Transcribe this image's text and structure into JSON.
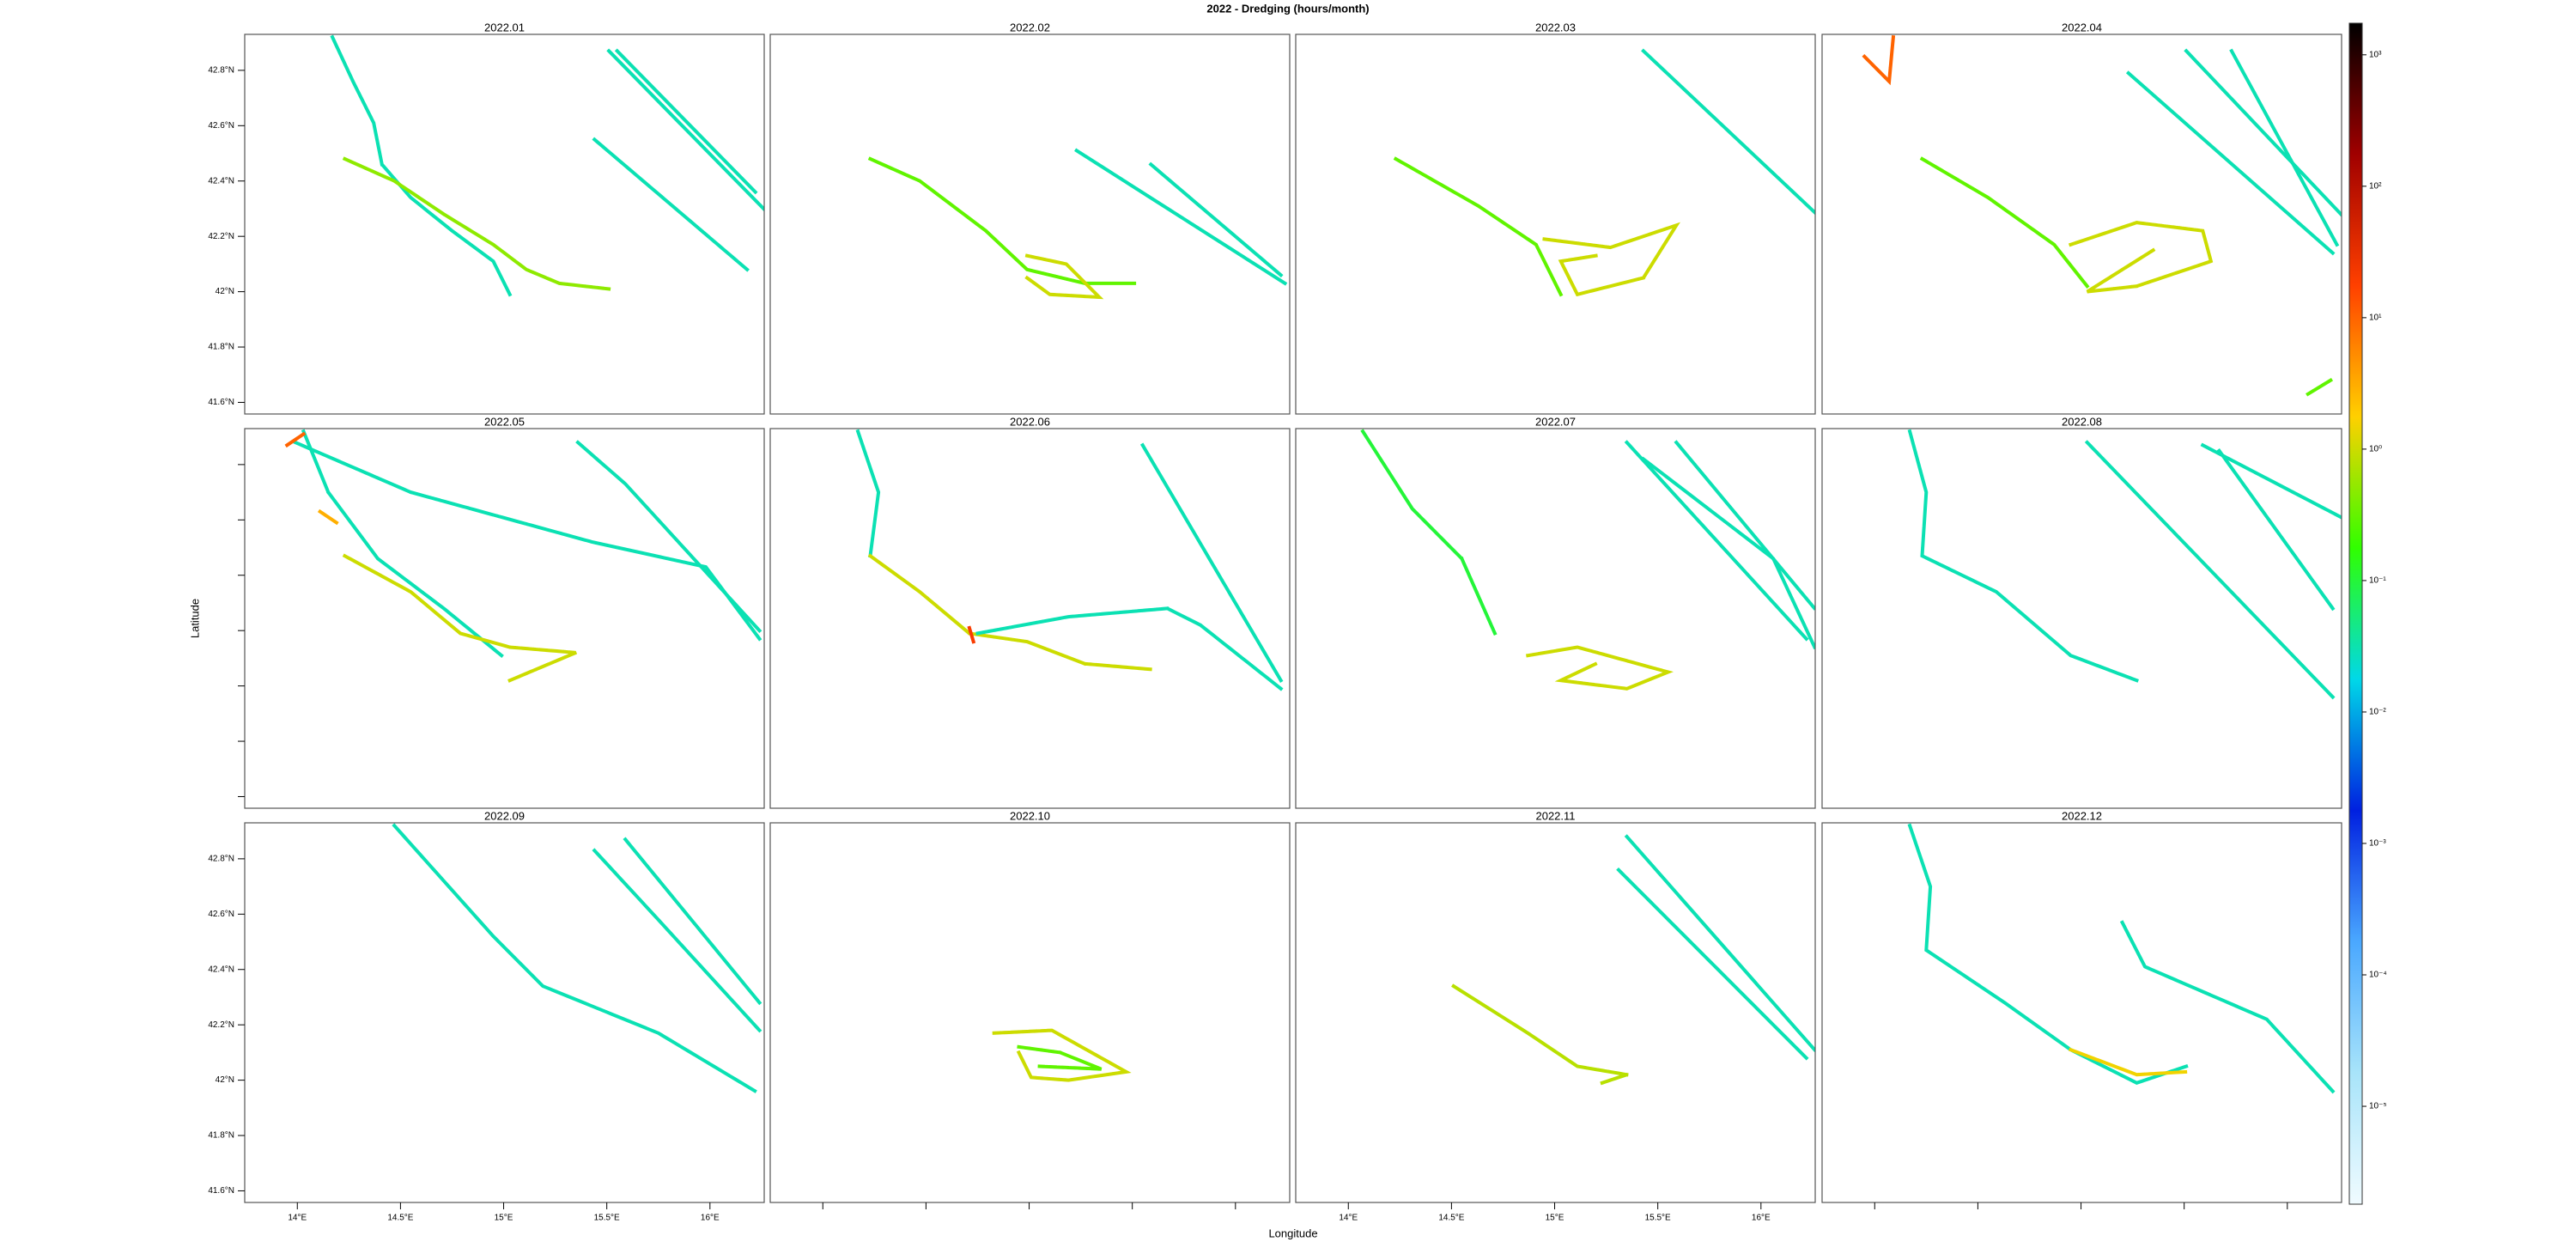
{
  "chart_data": {
    "type": "track_map",
    "title": "2022 - Dredging (hours/month)",
    "xlabel": "Longitude",
    "ylabel": "Latitude",
    "xlim": [
      13.745,
      16.263
    ],
    "ylim": [
      41.558,
      42.93
    ],
    "xticks": [
      {
        "value": 14,
        "label": "14°E"
      },
      {
        "value": 14.5,
        "label": "14.5°E"
      },
      {
        "value": 15,
        "label": "15°E"
      },
      {
        "value": 15.5,
        "label": "15.5°E"
      },
      {
        "value": 16,
        "label": "16°E"
      }
    ],
    "yticks": [
      {
        "value": 41.6,
        "label": "41.6°N"
      },
      {
        "value": 41.8,
        "label": "41.8°N"
      },
      {
        "value": 42,
        "label": "42°N"
      },
      {
        "value": 42.2,
        "label": "42.2°N"
      },
      {
        "value": 42.4,
        "label": "42.4°N"
      },
      {
        "value": 42.6,
        "label": "42.6°N"
      },
      {
        "value": 42.8,
        "label": "42.8°N"
      }
    ],
    "colorbar": {
      "log": true,
      "clim": [
        1.8e-06,
        1740
      ],
      "colors": [
        "#f0fbff",
        "#a8e4fa",
        "#4aa8ff",
        "#0020e0",
        "#00d8e8",
        "#30ff00",
        "#ffd000",
        "#ff4000",
        "#a00000",
        "#000000"
      ],
      "ticks": [
        {
          "value": 1e-05,
          "label": "10⁻⁵"
        },
        {
          "value": 0.0001,
          "label": "10⁻⁴"
        },
        {
          "value": 0.001,
          "label": "10⁻³"
        },
        {
          "value": 0.01,
          "label": "10⁻²"
        },
        {
          "value": 0.1,
          "label": "10⁻¹"
        },
        {
          "value": 1,
          "label": "10⁰"
        },
        {
          "value": 10,
          "label": "10¹"
        },
        {
          "value": 100,
          "label": "10²"
        },
        {
          "value": 1000,
          "label": "10³"
        }
      ]
    },
    "panels": [
      {
        "title": "2022.01",
        "xaxis": "none",
        "yaxis": "labels",
        "tracks": [
          {
            "lon": [
              14.17,
              14.27,
              14.37,
              14.41,
              14.55,
              14.75,
              14.95,
              15.03
            ],
            "lat": [
              42.92,
              42.76,
              42.61,
              42.46,
              42.34,
              42.22,
              42.11,
              41.99
            ],
            "value": 0.03
          },
          {
            "lon": [
              14.23,
              14.47,
              14.71,
              14.95,
              15.11,
              15.27,
              15.51
            ],
            "lat": [
              42.48,
              42.4,
              42.28,
              42.17,
              42.08,
              42.03,
              42.01
            ],
            "value": 0.5
          },
          {
            "lon": [
              15.51,
              16.26
            ],
            "lat": [
              42.87,
              42.3
            ],
            "value": 0.03
          },
          {
            "lon": [
              15.55,
              16.22
            ],
            "lat": [
              42.87,
              42.36
            ],
            "value": 0.03
          },
          {
            "lon": [
              15.44,
              16.18
            ],
            "lat": [
              42.55,
              42.08
            ],
            "value": 0.03
          }
        ]
      },
      {
        "title": "2022.02",
        "xaxis": "none",
        "yaxis": "none",
        "tracks": [
          {
            "lon": [
              14.23,
              14.47,
              14.79,
              14.99,
              15.27,
              15.51
            ],
            "lat": [
              42.48,
              42.4,
              42.22,
              42.08,
              42.03,
              42.03
            ],
            "value": 0.3
          },
          {
            "lon": [
              14.99,
              15.18,
              15.34,
              15.1,
              14.99
            ],
            "lat": [
              42.13,
              42.1,
              41.98,
              41.99,
              42.05
            ],
            "value": 1
          },
          {
            "lon": [
              15.23,
              16.24
            ],
            "lat": [
              42.51,
              42.03
            ],
            "value": 0.03
          },
          {
            "lon": [
              15.59,
              16.22
            ],
            "lat": [
              42.46,
              42.06
            ],
            "value": 0.03
          }
        ]
      },
      {
        "title": "2022.03",
        "xaxis": "none",
        "yaxis": "none",
        "tracks": [
          {
            "lon": [
              14.23,
              14.63,
              14.91,
              15.03
            ],
            "lat": [
              42.48,
              42.31,
              42.17,
              41.99
            ],
            "value": 0.3
          },
          {
            "lon": [
              14.95,
              15.27,
              15.59,
              15.43,
              15.11,
              15.03,
              15.2
            ],
            "lat": [
              42.19,
              42.16,
              42.24,
              42.05,
              41.99,
              42.11,
              42.13
            ],
            "value": 1
          },
          {
            "lon": [
              15.43,
              16.27
            ],
            "lat": [
              42.87,
              42.28
            ],
            "value": 0.03
          }
        ]
      },
      {
        "title": "2022.04",
        "xaxis": "none",
        "yaxis": "none",
        "tracks": [
          {
            "lon": [
              13.95,
              14.07,
              14.09
            ],
            "lat": [
              42.85,
              42.76,
              42.92
            ],
            "value": 10
          },
          {
            "lon": [
              14.23,
              14.55,
              14.87,
              15.03
            ],
            "lat": [
              42.48,
              42.34,
              42.17,
              42.02
            ],
            "value": 0.3
          },
          {
            "lon": [
              14.95,
              15.27,
              15.59,
              15.63,
              15.27,
              15.03,
              15.35
            ],
            "lat": [
              42.17,
              42.25,
              42.22,
              42.11,
              42.02,
              42.0,
              42.15
            ],
            "value": 1
          },
          {
            "lon": [
              15.23,
              16.22
            ],
            "lat": [
              42.79,
              42.14
            ],
            "value": 0.03
          },
          {
            "lon": [
              15.51,
              16.26
            ],
            "lat": [
              42.87,
              42.28
            ],
            "value": 0.03
          },
          {
            "lon": [
              15.73,
              16.24
            ],
            "lat": [
              42.87,
              42.17
            ],
            "value": 0.03
          },
          {
            "lon": [
              16.1,
              16.21
            ],
            "lat": [
              41.63,
              41.68
            ],
            "value": 0.3
          }
        ]
      },
      {
        "title": "2022.05",
        "xaxis": "none",
        "yaxis": "ticks",
        "tracks": [
          {
            "lon": [
              13.99,
              14.55,
              15.43,
              15.98,
              16.24
            ],
            "lat": [
              42.88,
              42.7,
              42.52,
              42.43,
              42.17
            ],
            "value": 0.03
          },
          {
            "lon": [
              14.03,
              14.15,
              14.39,
              14.71,
              14.99
            ],
            "lat": [
              42.92,
              42.7,
              42.46,
              42.28,
              42.11
            ],
            "value": 0.03
          },
          {
            "lon": [
              14.23,
              14.55,
              14.79,
              15.03,
              15.35,
              15.03
            ],
            "lat": [
              42.47,
              42.34,
              42.19,
              42.14,
              42.12,
              42.02
            ],
            "value": 1
          },
          {
            "lon": [
              15.36,
              15.59,
              16.24
            ],
            "lat": [
              42.88,
              42.73,
              42.2
            ],
            "value": 0.03
          },
          {
            "lon": [
              14.11,
              14.19
            ],
            "lat": [
              42.63,
              42.59
            ],
            "value": 3
          },
          {
            "lon": [
              13.95,
              14.03
            ],
            "lat": [
              42.87,
              42.91
            ],
            "value": 10
          }
        ]
      },
      {
        "title": "2022.06",
        "xaxis": "none",
        "yaxis": "none",
        "tracks": [
          {
            "lon": [
              14.17,
              14.27,
              14.23
            ],
            "lat": [
              42.92,
              42.7,
              42.47
            ],
            "value": 0.03
          },
          {
            "lon": [
              14.23,
              14.47,
              14.71,
              14.99,
              15.27,
              15.59
            ],
            "lat": [
              42.47,
              42.34,
              42.19,
              42.16,
              42.08,
              42.06
            ],
            "value": 1
          },
          {
            "lon": [
              14.75,
              15.19,
              15.67,
              15.83,
              16.22
            ],
            "lat": [
              42.19,
              42.25,
              42.28,
              42.22,
              41.99
            ],
            "value": 0.03
          },
          {
            "lon": [
              15.55,
              16.22
            ],
            "lat": [
              42.87,
              42.02
            ],
            "value": 0.03
          },
          {
            "lon": [
              14.71,
              14.73
            ],
            "lat": [
              42.21,
              42.16
            ],
            "value": 20
          }
        ]
      },
      {
        "title": "2022.07",
        "xaxis": "none",
        "yaxis": "none",
        "tracks": [
          {
            "lon": [
              14.07,
              14.31,
              14.55,
              14.71
            ],
            "lat": [
              42.92,
              42.64,
              42.46,
              42.19
            ],
            "value": 0.1
          },
          {
            "lon": [
              14.87,
              15.11,
              15.55,
              15.35,
              15.03,
              15.2
            ],
            "lat": [
              42.11,
              42.14,
              42.05,
              41.99,
              42.02,
              42.08
            ],
            "value": 1
          },
          {
            "lon": [
              15.35,
              16.22
            ],
            "lat": [
              42.88,
              42.17
            ],
            "value": 0.03
          },
          {
            "lon": [
              15.59,
              16.26
            ],
            "lat": [
              42.88,
              42.28
            ],
            "value": 0.03
          },
          {
            "lon": [
              15.43,
              16.06,
              16.26
            ],
            "lat": [
              42.82,
              42.46,
              42.14
            ],
            "value": 0.03
          }
        ]
      },
      {
        "title": "2022.08",
        "xaxis": "none",
        "yaxis": "none",
        "tracks": [
          {
            "lon": [
              14.17,
              14.25,
              14.23,
              14.59,
              14.95,
              15.27
            ],
            "lat": [
              42.92,
              42.7,
              42.47,
              42.34,
              42.11,
              42.02
            ],
            "value": 0.03
          },
          {
            "lon": [
              15.03,
              16.22
            ],
            "lat": [
              42.88,
              41.96
            ],
            "value": 0.03
          },
          {
            "lon": [
              15.59,
              16.26
            ],
            "lat": [
              42.87,
              42.61
            ],
            "value": 0.03
          },
          {
            "lon": [
              15.67,
              16.22
            ],
            "lat": [
              42.85,
              42.28
            ],
            "value": 0.03
          }
        ]
      },
      {
        "title": "2022.09",
        "xaxis": "labels",
        "yaxis": "labels",
        "tracks": [
          {
            "lon": [
              14.47,
              14.95,
              15.19,
              15.75,
              16.22
            ],
            "lat": [
              42.92,
              42.52,
              42.34,
              42.17,
              41.96
            ],
            "value": 0.03
          },
          {
            "lon": [
              15.44,
              15.75,
              16.24
            ],
            "lat": [
              42.83,
              42.58,
              42.18
            ],
            "value": 0.03
          },
          {
            "lon": [
              15.59,
              16.24
            ],
            "lat": [
              42.87,
              42.28
            ],
            "value": 0.03
          }
        ]
      },
      {
        "title": "2022.10",
        "xaxis": "ticks",
        "yaxis": "none",
        "tracks": [
          {
            "lon": [
              14.83,
              15.11,
              15.47,
              15.19,
              15.01,
              14.95
            ],
            "lat": [
              42.17,
              42.18,
              42.03,
              42.0,
              42.01,
              42.1
            ],
            "value": 1
          },
          {
            "lon": [
              14.95,
              15.15,
              15.35,
              15.05
            ],
            "lat": [
              42.12,
              42.1,
              42.04,
              42.05
            ],
            "value": 0.3
          }
        ]
      },
      {
        "title": "2022.11",
        "xaxis": "labels",
        "yaxis": "none",
        "tracks": [
          {
            "lon": [
              14.51,
              14.87,
              15.11,
              15.35,
              15.23
            ],
            "lat": [
              42.34,
              42.17,
              42.05,
              42.02,
              41.99
            ],
            "value": 0.8
          },
          {
            "lon": [
              15.35,
              16.26
            ],
            "lat": [
              42.88,
              42.11
            ],
            "value": 0.03
          },
          {
            "lon": [
              15.31,
              16.22
            ],
            "lat": [
              42.76,
              42.08
            ],
            "value": 0.03
          }
        ]
      },
      {
        "title": "2022.12",
        "xaxis": "ticks",
        "yaxis": "none",
        "tracks": [
          {
            "lon": [
              14.17,
              14.27,
              14.25,
              14.63,
              14.95,
              15.27,
              15.51
            ],
            "lat": [
              42.92,
              42.7,
              42.47,
              42.28,
              42.11,
              41.99,
              42.05
            ],
            "value": 0.03
          },
          {
            "lon": [
              14.95,
              15.27,
              15.51
            ],
            "lat": [
              42.11,
              42.02,
              42.03
            ],
            "value": 1.5
          },
          {
            "lon": [
              15.2,
              15.31,
              15.9,
              16.22
            ],
            "lat": [
              42.57,
              42.41,
              42.22,
              41.96
            ],
            "value": 0.03
          }
        ]
      }
    ]
  }
}
